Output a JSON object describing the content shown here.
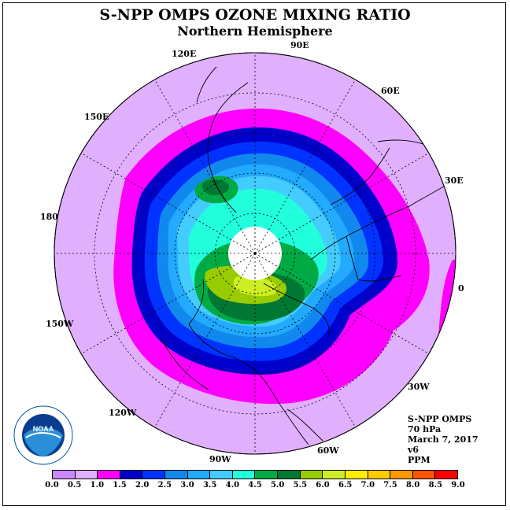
{
  "title": "S-NPP OMPS OZONE MIXING RATIO",
  "subtitle": "Northern Hemisphere",
  "longitude_labels": [
    {
      "id": "90E",
      "text": "90E"
    },
    {
      "id": "60E",
      "text": "60E"
    },
    {
      "id": "30E",
      "text": "30E"
    },
    {
      "id": "0",
      "text": "0"
    },
    {
      "id": "30W",
      "text": "30W"
    },
    {
      "id": "60W",
      "text": "60W"
    },
    {
      "id": "90W",
      "text": "90W"
    },
    {
      "id": "120W",
      "text": "120W"
    },
    {
      "id": "150W",
      "text": "150W"
    },
    {
      "id": "180",
      "text": "180"
    },
    {
      "id": "150E",
      "text": "150E"
    },
    {
      "id": "120E",
      "text": "120E"
    }
  ],
  "info": {
    "instrument": "S-NPP OMPS",
    "level": "70 hPa",
    "date": "March 7, 2017",
    "version": "v6",
    "units": "PPM"
  },
  "logo_text": "NOAA",
  "legend": {
    "labels": [
      "0.0",
      "0.5",
      "1.0",
      "1.5",
      "2.0",
      "2.5",
      "3.0",
      "3.5",
      "4.0",
      "4.5",
      "5.0",
      "5.5",
      "6.0",
      "6.5",
      "7.0",
      "7.5",
      "8.0",
      "8.5",
      "9.0"
    ],
    "colors": [
      "#cc88ff",
      "#e0b0ff",
      "#ff00ff",
      "#0000cc",
      "#0033ff",
      "#1188ee",
      "#22aaff",
      "#44ccff",
      "#22ffdd",
      "#00aa44",
      "#007733",
      "#99cc00",
      "#ccee22",
      "#ffee00",
      "#ffcc00",
      "#ff9900",
      "#ff5500",
      "#ff0000",
      "#885533"
    ]
  },
  "colors": {
    "background_disk": "#e0b0ff",
    "polar_gap": "#ffffff"
  }
}
